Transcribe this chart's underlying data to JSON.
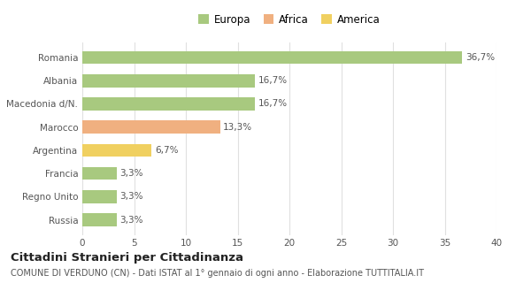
{
  "categories": [
    "Russia",
    "Regno Unito",
    "Francia",
    "Argentina",
    "Marocco",
    "Macedonia d/N.",
    "Albania",
    "Romania"
  ],
  "values": [
    3.3,
    3.3,
    3.3,
    6.7,
    13.3,
    16.7,
    16.7,
    36.7
  ],
  "labels": [
    "3,3%",
    "3,3%",
    "3,3%",
    "6,7%",
    "13,3%",
    "16,7%",
    "16,7%",
    "36,7%"
  ],
  "colors": [
    "#a8c97f",
    "#a8c97f",
    "#a8c97f",
    "#f0d060",
    "#f0b080",
    "#a8c97f",
    "#a8c97f",
    "#a8c97f"
  ],
  "legend": [
    {
      "label": "Europa",
      "color": "#a8c97f"
    },
    {
      "label": "Africa",
      "color": "#f0b080"
    },
    {
      "label": "America",
      "color": "#f0d060"
    }
  ],
  "xlim": [
    0,
    40
  ],
  "xticks": [
    0,
    5,
    10,
    15,
    20,
    25,
    30,
    35,
    40
  ],
  "title_bold": "Cittadini Stranieri per Cittadinanza",
  "subtitle": "COMUNE DI VERDUNO (CN) - Dati ISTAT al 1° gennaio di ogni anno - Elaborazione TUTTITALIA.IT",
  "background_color": "#ffffff",
  "grid_color": "#e0e0e0",
  "bar_height": 0.55,
  "label_fontsize": 7.5,
  "tick_fontsize": 7.5,
  "legend_fontsize": 8.5,
  "title_fontsize": 9.5,
  "subtitle_fontsize": 7.0,
  "text_color": "#555555",
  "title_color": "#222222"
}
